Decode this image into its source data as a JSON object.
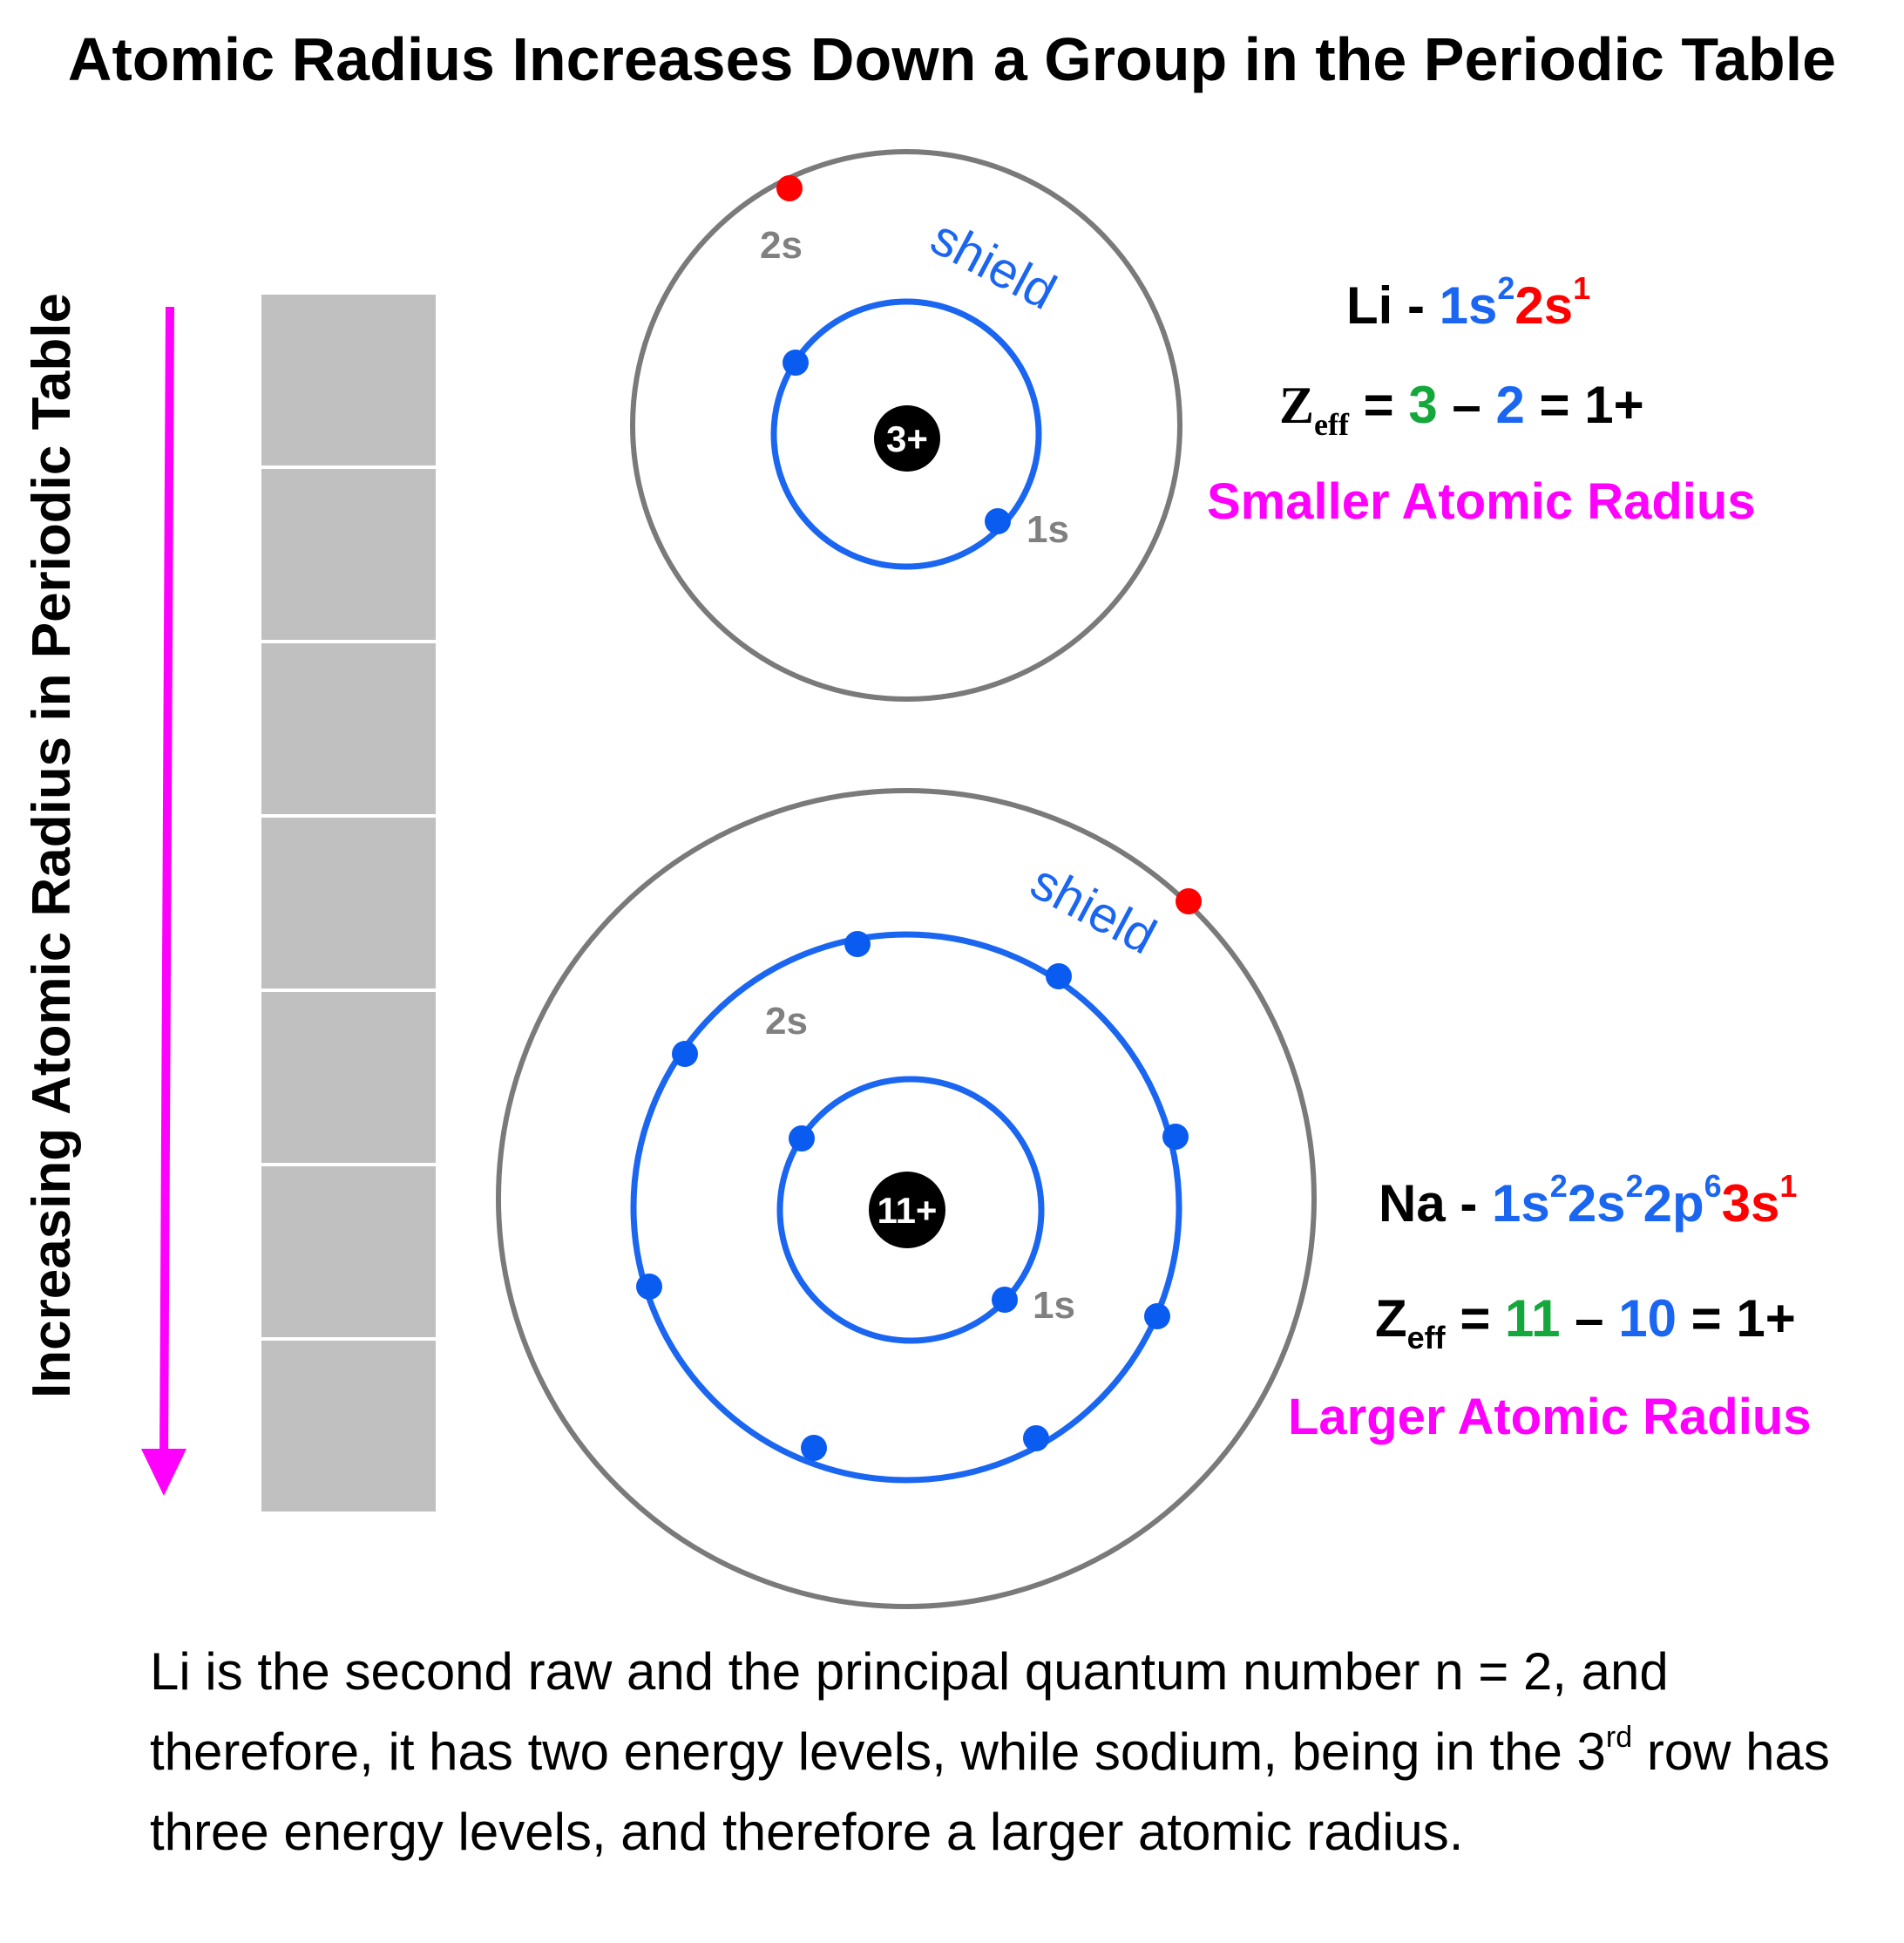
{
  "title": "Atomic Radius Increases Down a Group in the Periodic Table",
  "side_label": "Increasing Atomic Radius in Periodic Table",
  "colors": {
    "magenta": "#ff00ff",
    "orbital_blue": "#1a66f0",
    "electron_blue": "#0a5cf0",
    "valence_red": "#ff0000",
    "outer_shell_gray": "#7a7a7a",
    "cell_gray": "#c0c0c0",
    "green": "#14a83c",
    "nucleus": "#000000"
  },
  "periodic_column": {
    "cell_count": 7
  },
  "li": {
    "nucleus": "3+",
    "orbital_1s": "1s",
    "orbital_2s": "2s",
    "shield": "shield",
    "config": {
      "symbol": "Li - ",
      "part1": "1s",
      "part1_exp": "2",
      "part2": "2s",
      "part2_exp": "1"
    },
    "zeff": {
      "symbol": "Z",
      "sub": "eff",
      "eq": " = ",
      "z": "3",
      "minus": " – ",
      "s": "2",
      "result": " = 1+"
    },
    "radius_label": "Smaller Atomic Radius"
  },
  "na": {
    "nucleus": "11+",
    "orbital_1s": "1s",
    "orbital_2s": "2s",
    "shield": "shield",
    "config": {
      "symbol": "Na - ",
      "part1": "1s",
      "part1_exp": "2",
      "part2": "2s",
      "part2_exp": "2",
      "part3": "2p",
      "part3_exp": "6",
      "part4": "3s",
      "part4_exp": "1"
    },
    "zeff": {
      "symbol": "Z",
      "sub": "eff",
      "eq": " = ",
      "z": "11",
      "minus": " – ",
      "s": "10",
      "result": " = 1+"
    },
    "radius_label": "Larger Atomic Radius"
  },
  "explanation": {
    "part1": "Li is the second raw and the principal quantum number n = 2, and therefore, it has two energy levels, while sodium, being in the 3",
    "sup": "rd",
    "part2": " row has three energy levels, and therefore a larger atomic radius."
  }
}
